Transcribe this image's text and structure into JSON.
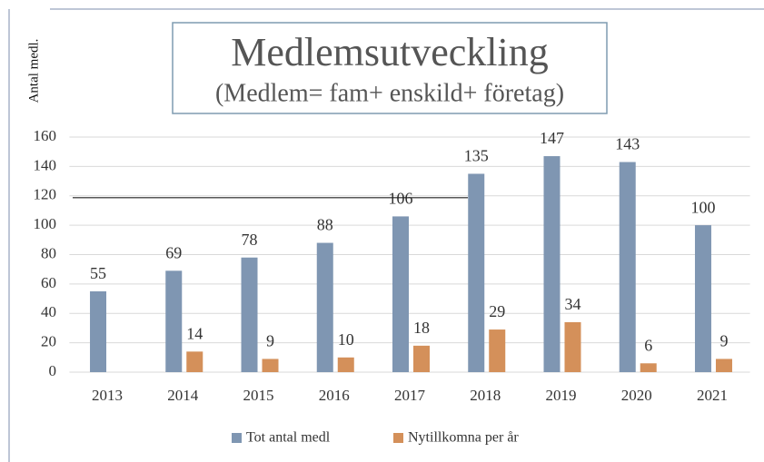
{
  "chart_data": {
    "type": "bar",
    "title": "Medlemsutveckling",
    "subtitle": "(Medlem= fam+ enskild+ företag)",
    "y_label": "Antal medl.",
    "categories": [
      "2013",
      "2014",
      "2015",
      "2016",
      "2017",
      "2018",
      "2019",
      "2020",
      "2021"
    ],
    "series": [
      {
        "name": "Tot antal medl",
        "color": "#7f96b2",
        "values": [
          55,
          69,
          78,
          88,
          106,
          135,
          147,
          143,
          100
        ]
      },
      {
        "name": "Nytillkomna per år",
        "color": "#d4905a",
        "values": [
          null,
          14,
          9,
          10,
          18,
          29,
          34,
          6,
          9
        ]
      }
    ],
    "ylim": [
      0,
      160
    ],
    "yticks": [
      0,
      20,
      40,
      60,
      80,
      100,
      120,
      140,
      160
    ],
    "grid": true,
    "legend": "bottom"
  }
}
